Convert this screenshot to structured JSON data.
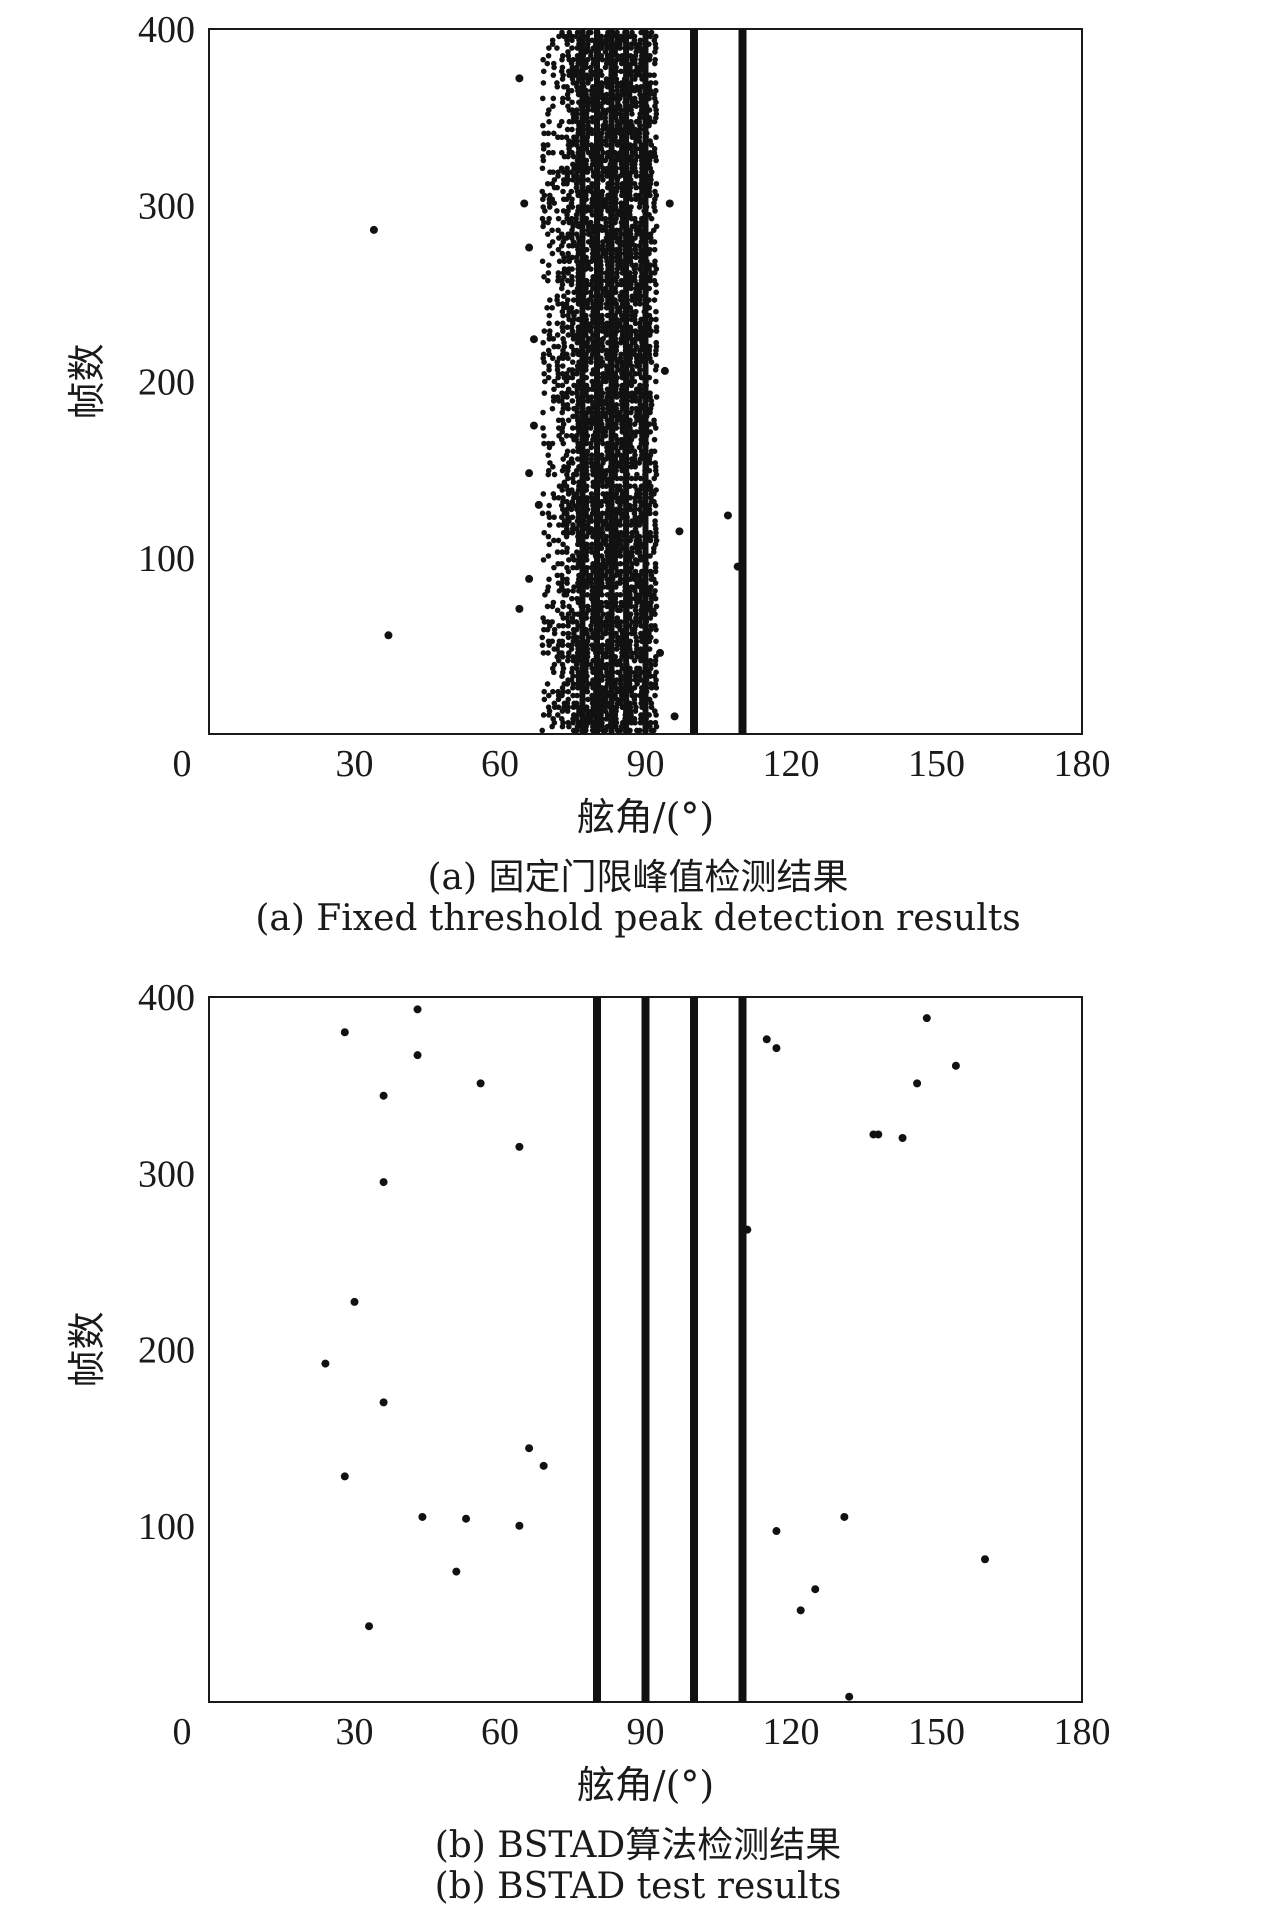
{
  "chart_data": [
    {
      "type": "scatter",
      "xlabel": "舷角/(°)",
      "ylabel": "帧数",
      "xlim": [
        0,
        180
      ],
      "ylim": [
        0,
        400
      ],
      "xticks": [
        30,
        60,
        90,
        120,
        150,
        180
      ],
      "yticks": [
        100,
        200,
        300,
        400
      ],
      "origin_label": "0",
      "grid": false,
      "caption_cn": "(a) 固定门限峰值检测结果",
      "caption_en": "(a) Fixed threshold peak detection results",
      "solid_tracks": [
        {
          "x": 100,
          "from": 0,
          "to": 400
        },
        {
          "x": 110,
          "from": 0,
          "to": 400
        }
      ],
      "dense_band": {
        "x_min": 68,
        "x_max": 93,
        "columns": [
          69,
          70,
          71,
          72,
          73,
          74,
          75,
          76,
          77,
          78,
          79,
          80,
          81,
          82,
          83,
          84,
          85,
          86,
          87,
          88,
          89,
          90,
          91,
          92
        ]
      },
      "points": [
        {
          "x": 34,
          "y": 286
        },
        {
          "x": 37,
          "y": 56
        },
        {
          "x": 64,
          "y": 372
        },
        {
          "x": 65,
          "y": 301
        },
        {
          "x": 66,
          "y": 276
        },
        {
          "x": 64,
          "y": 71
        },
        {
          "x": 66,
          "y": 88
        },
        {
          "x": 67,
          "y": 224
        },
        {
          "x": 66,
          "y": 148
        },
        {
          "x": 94,
          "y": 206
        },
        {
          "x": 95,
          "y": 301
        },
        {
          "x": 96,
          "y": 10
        },
        {
          "x": 97,
          "y": 115
        },
        {
          "x": 107,
          "y": 124
        },
        {
          "x": 109,
          "y": 95
        },
        {
          "x": 93,
          "y": 46
        },
        {
          "x": 67,
          "y": 175
        },
        {
          "x": 68,
          "y": 130
        }
      ]
    },
    {
      "type": "scatter",
      "xlabel": "舷角/(°)",
      "ylabel": "帧数",
      "xlim": [
        0,
        180
      ],
      "ylim": [
        0,
        400
      ],
      "xticks": [
        30,
        60,
        90,
        120,
        150,
        180
      ],
      "yticks": [
        100,
        200,
        300,
        400
      ],
      "origin_label": "0",
      "grid": false,
      "caption_cn": "(b) BSTAD算法检测结果",
      "caption_en": "(b) BSTAD test results",
      "solid_tracks": [
        {
          "x": 80,
          "from": 0,
          "to": 400
        },
        {
          "x": 90,
          "from": 0,
          "to": 400
        },
        {
          "x": 100,
          "from": 0,
          "to": 400
        },
        {
          "x": 110,
          "from": 0,
          "to": 400
        }
      ],
      "points": [
        {
          "x": 28,
          "y": 380
        },
        {
          "x": 43,
          "y": 393
        },
        {
          "x": 43,
          "y": 367
        },
        {
          "x": 36,
          "y": 344
        },
        {
          "x": 56,
          "y": 351
        },
        {
          "x": 64,
          "y": 315
        },
        {
          "x": 36,
          "y": 295
        },
        {
          "x": 30,
          "y": 227
        },
        {
          "x": 24,
          "y": 192
        },
        {
          "x": 36,
          "y": 170
        },
        {
          "x": 28,
          "y": 128
        },
        {
          "x": 66,
          "y": 144
        },
        {
          "x": 69,
          "y": 134
        },
        {
          "x": 44,
          "y": 105
        },
        {
          "x": 53,
          "y": 104
        },
        {
          "x": 64,
          "y": 100
        },
        {
          "x": 51,
          "y": 74
        },
        {
          "x": 33,
          "y": 43
        },
        {
          "x": 115,
          "y": 376
        },
        {
          "x": 117,
          "y": 371
        },
        {
          "x": 148,
          "y": 388
        },
        {
          "x": 154,
          "y": 361
        },
        {
          "x": 146,
          "y": 351
        },
        {
          "x": 137,
          "y": 322
        },
        {
          "x": 138,
          "y": 322
        },
        {
          "x": 143,
          "y": 320
        },
        {
          "x": 111,
          "y": 268
        },
        {
          "x": 117,
          "y": 97
        },
        {
          "x": 131,
          "y": 105
        },
        {
          "x": 160,
          "y": 81
        },
        {
          "x": 125,
          "y": 64
        },
        {
          "x": 122,
          "y": 52
        },
        {
          "x": 132,
          "y": 3
        }
      ]
    }
  ]
}
